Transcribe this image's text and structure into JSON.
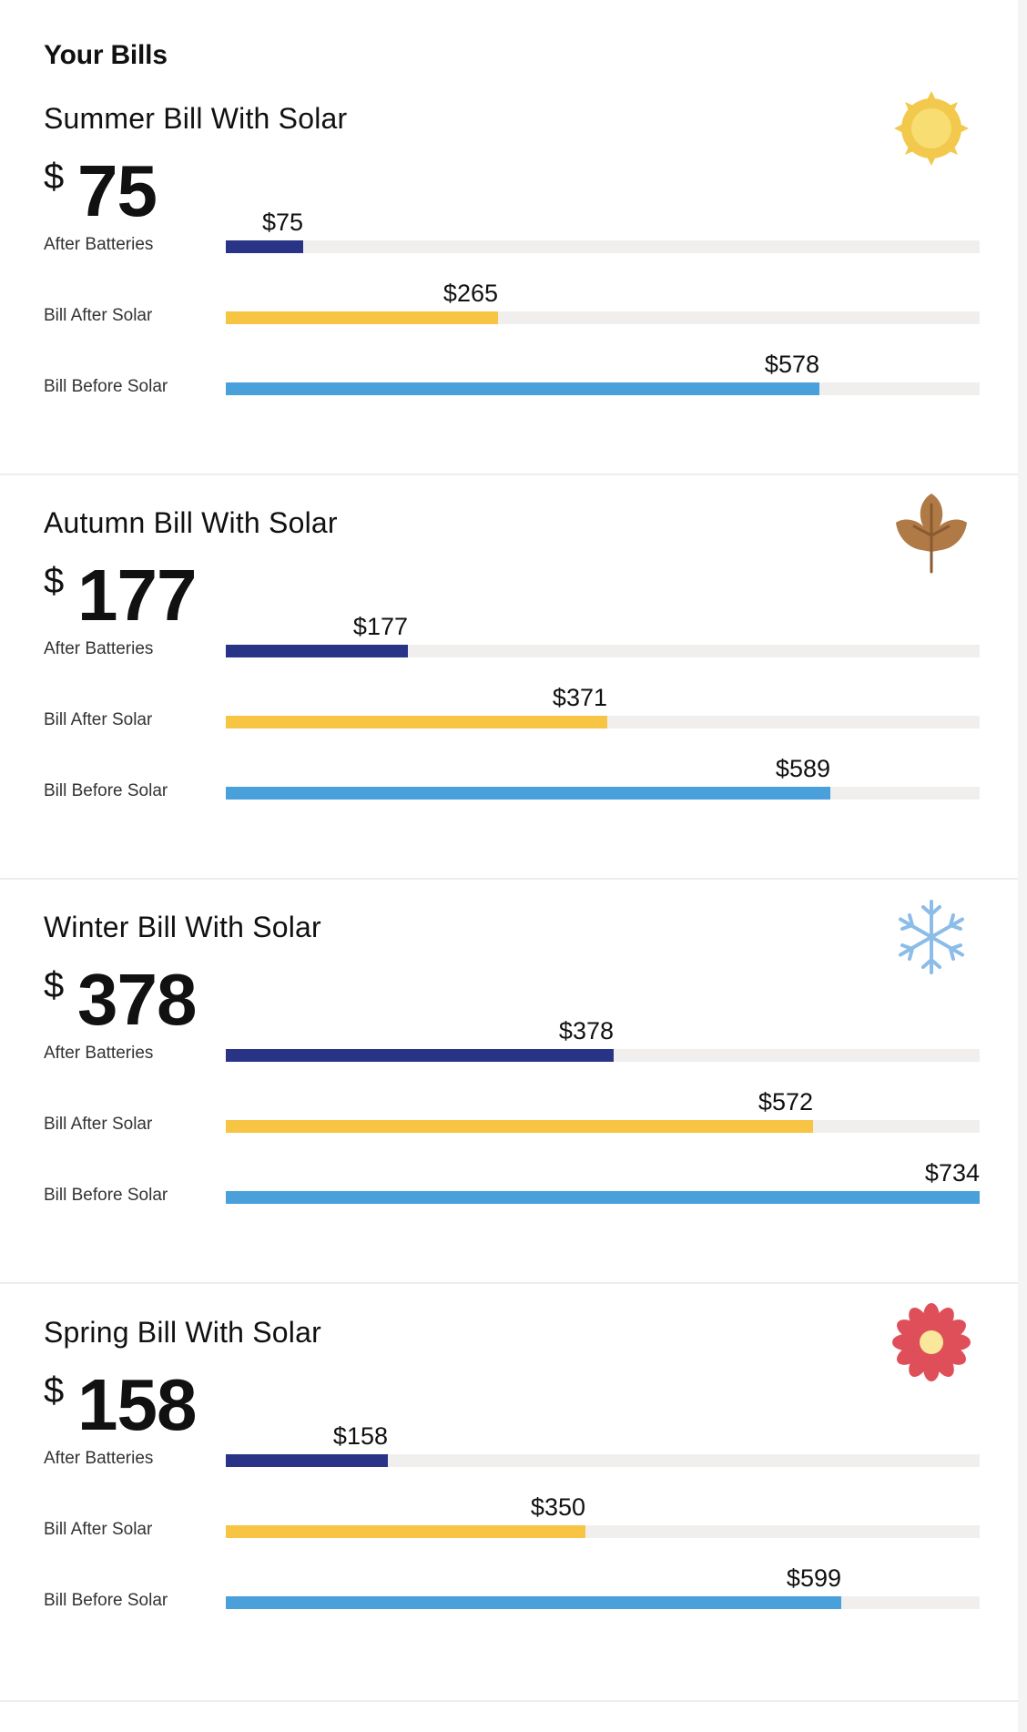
{
  "page": {
    "title": "Your Bills"
  },
  "colors": {
    "after_batteries": "#2a3486",
    "bill_after_solar": "#f7c444",
    "bill_before_solar": "#4aa0db",
    "track": "#f1efee"
  },
  "scale_max": 734,
  "seasons": [
    {
      "title": "Summer Bill With Solar",
      "icon": "sun-icon",
      "currency": "$",
      "amount": "75",
      "bars": [
        {
          "label": "After Batteries",
          "value": 75,
          "value_label": "$75"
        },
        {
          "label": "Bill After Solar",
          "value": 265,
          "value_label": "$265"
        },
        {
          "label": "Bill Before Solar",
          "value": 578,
          "value_label": "$578"
        }
      ]
    },
    {
      "title": "Autumn Bill With Solar",
      "icon": "leaf-icon",
      "currency": "$",
      "amount": "177",
      "bars": [
        {
          "label": "After Batteries",
          "value": 177,
          "value_label": "$177"
        },
        {
          "label": "Bill After Solar",
          "value": 371,
          "value_label": "$371"
        },
        {
          "label": "Bill Before Solar",
          "value": 589,
          "value_label": "$589"
        }
      ]
    },
    {
      "title": "Winter Bill With Solar",
      "icon": "snowflake-icon",
      "currency": "$",
      "amount": "378",
      "bars": [
        {
          "label": "After Batteries",
          "value": 378,
          "value_label": "$378"
        },
        {
          "label": "Bill After Solar",
          "value": 572,
          "value_label": "$572"
        },
        {
          "label": "Bill Before Solar",
          "value": 734,
          "value_label": "$734"
        }
      ]
    },
    {
      "title": "Spring Bill With Solar",
      "icon": "flower-icon",
      "currency": "$",
      "amount": "158",
      "bars": [
        {
          "label": "After Batteries",
          "value": 158,
          "value_label": "$158"
        },
        {
          "label": "Bill After Solar",
          "value": 350,
          "value_label": "$350"
        },
        {
          "label": "Bill Before Solar",
          "value": 599,
          "value_label": "$599"
        }
      ]
    }
  ]
}
